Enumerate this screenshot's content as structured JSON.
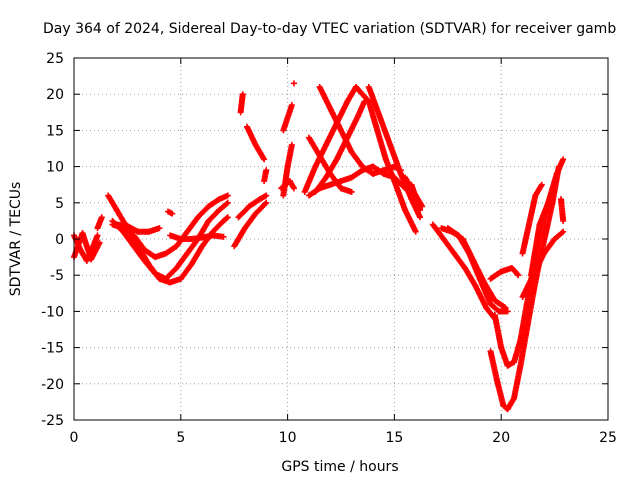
{
  "chart_data": {
    "type": "scatter",
    "title": "Day 364 of 2024, Sidereal Day-to-day VTEC variation (SDTVAR) for receiver gamb",
    "xlabel": "GPS time / hours",
    "ylabel": "SDTVAR / TECUs",
    "xlim": [
      0,
      25
    ],
    "ylim": [
      -25,
      25
    ],
    "xticks": [
      0,
      5,
      10,
      15,
      20,
      25
    ],
    "yticks": [
      -25,
      -20,
      -15,
      -10,
      -5,
      0,
      5,
      10,
      15,
      20,
      25
    ],
    "grid": true,
    "marker": "plus",
    "color": "#ff0000",
    "series": [
      {
        "tracks": [
          [
            [
              0.0,
              0.5
            ],
            [
              0.3,
              -1.5
            ],
            [
              0.6,
              -3.0
            ],
            [
              0.9,
              -1.0
            ],
            [
              1.1,
              0.5
            ]
          ],
          [
            [
              0.0,
              -2.5
            ],
            [
              0.4,
              0.8
            ],
            [
              0.8,
              -2.8
            ],
            [
              1.2,
              -0.5
            ]
          ],
          [
            [
              1.1,
              1.5
            ],
            [
              1.3,
              3.0
            ]
          ],
          [
            [
              1.6,
              6.0
            ],
            [
              2.0,
              4.0
            ],
            [
              2.5,
              1.5
            ],
            [
              3.0,
              -1.0
            ],
            [
              3.5,
              -3.5
            ],
            [
              4.0,
              -5.5
            ],
            [
              4.5,
              -6.0
            ],
            [
              5.0,
              -5.5
            ],
            [
              5.5,
              -3.5
            ],
            [
              6.0,
              -1.0
            ],
            [
              6.5,
              1.0
            ],
            [
              7.0,
              2.5
            ],
            [
              7.2,
              3.0
            ]
          ],
          [
            [
              1.8,
              2.5
            ],
            [
              2.3,
              1.0
            ],
            [
              2.8,
              -1.0
            ],
            [
              3.3,
              -3.0
            ],
            [
              3.8,
              -4.8
            ],
            [
              4.3,
              -5.5
            ],
            [
              4.8,
              -4.0
            ],
            [
              5.3,
              -2.0
            ],
            [
              5.8,
              0.0
            ],
            [
              6.3,
              2.5
            ],
            [
              6.8,
              4.0
            ],
            [
              7.2,
              5.0
            ]
          ],
          [
            [
              1.8,
              2.0
            ],
            [
              2.3,
              1.5
            ],
            [
              2.8,
              0.5
            ],
            [
              3.3,
              -1.5
            ],
            [
              3.8,
              -2.5
            ],
            [
              4.3,
              -2.0
            ],
            [
              4.8,
              -1.0
            ],
            [
              5.3,
              1.0
            ],
            [
              5.8,
              3.0
            ],
            [
              6.3,
              4.5
            ],
            [
              6.8,
              5.5
            ],
            [
              7.2,
              6.0
            ]
          ],
          [
            [
              2.0,
              2.0
            ],
            [
              2.5,
              1.8
            ],
            [
              3.0,
              1.0
            ],
            [
              3.5,
              1.0
            ],
            [
              4.0,
              1.5
            ]
          ],
          [
            [
              4.5,
              0.5
            ],
            [
              5.0,
              0.0
            ],
            [
              5.5,
              0.0
            ],
            [
              6.0,
              0.2
            ],
            [
              6.5,
              0.5
            ],
            [
              7.0,
              0.3
            ]
          ],
          [
            [
              4.4,
              3.8
            ],
            [
              4.6,
              3.5
            ]
          ],
          [
            [
              7.5,
              -1.0
            ],
            [
              8.0,
              1.5
            ],
            [
              8.5,
              3.5
            ],
            [
              9.0,
              5.0
            ]
          ],
          [
            [
              7.7,
              3.0
            ],
            [
              8.2,
              4.5
            ],
            [
              8.7,
              5.5
            ],
            [
              9.0,
              6.0
            ]
          ],
          [
            [
              7.8,
              17.5
            ],
            [
              7.9,
              20.0
            ]
          ],
          [
            [
              8.1,
              15.5
            ],
            [
              8.5,
              13.0
            ],
            [
              8.9,
              11.0
            ]
          ],
          [
            [
              8.9,
              8.0
            ],
            [
              9.0,
              9.5
            ]
          ],
          [
            [
              9.8,
              6.0
            ],
            [
              10.0,
              10.0
            ],
            [
              10.2,
              13.0
            ]
          ],
          [
            [
              9.8,
              15.0
            ],
            [
              10.2,
              18.5
            ]
          ],
          [
            [
              9.7,
              7.0
            ],
            [
              10.1,
              8.0
            ],
            [
              10.3,
              7.0
            ]
          ],
          [
            [
              10.3,
              21.5
            ]
          ],
          [
            [
              10.8,
              6.5
            ],
            [
              11.3,
              10.0
            ],
            [
              11.8,
              13.0
            ],
            [
              12.3,
              16.0
            ],
            [
              12.8,
              19.0
            ],
            [
              13.2,
              21.0
            ],
            [
              13.8,
              19.0
            ],
            [
              14.2,
              15.0
            ],
            [
              14.6,
              11.0
            ],
            [
              15.0,
              8.0
            ],
            [
              15.5,
              4.0
            ],
            [
              16.0,
              1.0
            ]
          ],
          [
            [
              11.5,
              21.0
            ],
            [
              12.0,
              18.0
            ],
            [
              12.5,
              15.0
            ],
            [
              13.0,
              12.0
            ],
            [
              13.5,
              10.0
            ],
            [
              14.0,
              9.0
            ],
            [
              14.5,
              9.5
            ],
            [
              15.0,
              10.0
            ],
            [
              15.3,
              9.5
            ]
          ],
          [
            [
              11.0,
              6.0
            ],
            [
              11.5,
              7.0
            ],
            [
              12.0,
              7.5
            ],
            [
              12.5,
              8.0
            ],
            [
              13.0,
              8.5
            ],
            [
              13.5,
              9.5
            ],
            [
              14.0,
              10.0
            ],
            [
              14.5,
              9.0
            ],
            [
              15.0,
              8.5
            ],
            [
              15.5,
              7.0
            ]
          ],
          [
            [
              11.0,
              14.0
            ],
            [
              11.5,
              11.5
            ],
            [
              12.0,
              9.0
            ],
            [
              12.5,
              7.0
            ],
            [
              13.0,
              6.5
            ]
          ],
          [
            [
              13.8,
              21.0
            ],
            [
              14.3,
              17.0
            ],
            [
              14.8,
              13.0
            ],
            [
              15.3,
              9.0
            ],
            [
              15.8,
              5.5
            ],
            [
              16.2,
              3.0
            ]
          ],
          [
            [
              11.3,
              6.5
            ],
            [
              11.8,
              8.5
            ],
            [
              12.3,
              11.0
            ],
            [
              12.8,
              14.0
            ],
            [
              13.3,
              17.0
            ],
            [
              13.6,
              19.0
            ]
          ],
          [
            [
              15.5,
              8.5
            ],
            [
              16.0,
              6.0
            ],
            [
              16.3,
              4.5
            ]
          ],
          [
            [
              15.8,
              7.5
            ],
            [
              16.2,
              4.0
            ]
          ],
          [
            [
              16.8,
              2.0
            ],
            [
              17.3,
              0.0
            ],
            [
              17.8,
              -2.0
            ],
            [
              18.3,
              -4.0
            ],
            [
              18.8,
              -6.5
            ],
            [
              19.3,
              -9.5
            ],
            [
              19.7,
              -11.0
            ]
          ],
          [
            [
              17.5,
              1.5
            ],
            [
              18.0,
              0.5
            ],
            [
              18.5,
              -2.0
            ],
            [
              19.0,
              -5.5
            ],
            [
              19.5,
              -9.0
            ],
            [
              19.9,
              -10.0
            ],
            [
              20.3,
              -10.0
            ]
          ],
          [
            [
              17.2,
              1.5
            ],
            [
              17.7,
              1.0
            ],
            [
              18.2,
              0.0
            ],
            [
              18.7,
              -3.0
            ],
            [
              19.2,
              -6.0
            ],
            [
              19.7,
              -8.5
            ],
            [
              20.2,
              -9.5
            ]
          ],
          [
            [
              19.5,
              -15.5
            ],
            [
              19.8,
              -19.5
            ],
            [
              20.1,
              -23.0
            ],
            [
              20.3,
              -23.5
            ],
            [
              20.6,
              -22.0
            ],
            [
              20.9,
              -17.5
            ],
            [
              21.2,
              -12.5
            ],
            [
              21.5,
              -7.5
            ],
            [
              21.8,
              -3.0
            ],
            [
              22.1,
              1.0
            ],
            [
              22.4,
              5.0
            ],
            [
              22.7,
              10.0
            ]
          ],
          [
            [
              19.7,
              -10.5
            ],
            [
              20.0,
              -15.0
            ],
            [
              20.3,
              -17.5
            ],
            [
              20.6,
              -17.0
            ],
            [
              20.9,
              -14.0
            ],
            [
              21.2,
              -9.0
            ],
            [
              21.5,
              -4.0
            ],
            [
              21.8,
              0.5
            ],
            [
              22.1,
              4.0
            ],
            [
              22.4,
              6.0
            ]
          ],
          [
            [
              19.5,
              -5.5
            ],
            [
              20.0,
              -4.5
            ],
            [
              20.5,
              -4.0
            ],
            [
              20.8,
              -5.0
            ]
          ],
          [
            [
              21.0,
              -8.0
            ],
            [
              21.5,
              -5.0
            ],
            [
              22.0,
              -2.0
            ],
            [
              22.5,
              0.0
            ],
            [
              22.9,
              1.0
            ]
          ],
          [
            [
              21.0,
              -2.0
            ],
            [
              21.3,
              2.0
            ],
            [
              21.6,
              6.0
            ],
            [
              21.9,
              7.5
            ]
          ],
          [
            [
              21.4,
              -5.0
            ],
            [
              21.8,
              2.0
            ],
            [
              22.2,
              5.0
            ],
            [
              22.6,
              9.0
            ],
            [
              22.9,
              11.0
            ]
          ],
          [
            [
              22.8,
              5.5
            ],
            [
              22.9,
              2.5
            ]
          ]
        ]
      }
    ]
  }
}
